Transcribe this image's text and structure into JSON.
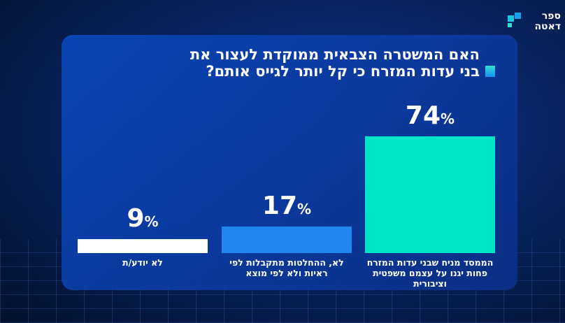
{
  "logo": {
    "text_line1": "ספר",
    "text_line2": "דאטה",
    "full": "ספר דאטה"
  },
  "colors": {
    "accent": "#00e5c8",
    "blue": "#2186ee",
    "white": "#ffffff"
  },
  "chart_data": {
    "type": "bar",
    "title": "האם המשטרה הצבאית ממוקדת לעצור את בני עדות המזרח כי קל יותר לגייס אותם?",
    "categories": [
      "לא יודע/ת",
      "לא, ההחלטות מתקבלות לפי ראיות ולא לפי מוצא",
      "הממסד מניח שבני עדות המזרח פחות יגנו על עצמם משפטית וציבורית"
    ],
    "values": [
      9,
      17,
      74
    ],
    "value_labels": [
      "9%",
      "17%",
      "74%"
    ],
    "colors": [
      "#ffffff",
      "#2186ee",
      "#00e5c8"
    ],
    "ylim": [
      0,
      100
    ],
    "grid": false,
    "legend": "none"
  }
}
